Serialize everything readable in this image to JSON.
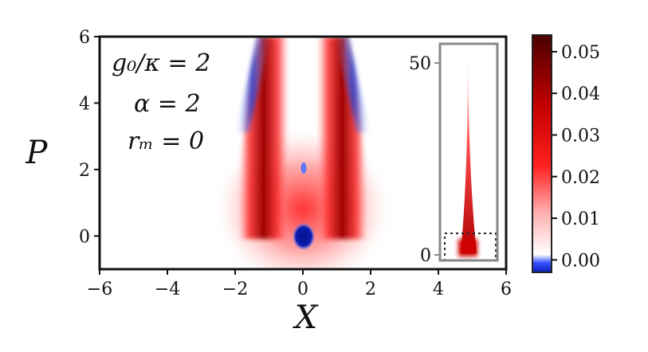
{
  "chart_data": {
    "type": "heatmap",
    "xlabel": "X",
    "ylabel": "P",
    "xlim": [
      -6,
      6
    ],
    "ylim": [
      -1,
      6
    ],
    "xticks": [
      "−6",
      "−4",
      "−2",
      "0",
      "2",
      "4",
      "6"
    ],
    "xtick_values": [
      -6,
      -4,
      -2,
      0,
      2,
      4,
      6
    ],
    "yticks": [
      "0",
      "2",
      "4",
      "6"
    ],
    "ytick_values": [
      0,
      2,
      4,
      6
    ],
    "annotations": [
      "g₀/κ = 2",
      "α = 2",
      "rₘ = 0"
    ],
    "colorbar": {
      "range": [
        -0.003,
        0.054
      ],
      "ticks": [
        "0.00",
        "0.01",
        "0.02",
        "0.03",
        "0.04",
        "0.05"
      ],
      "tick_values": [
        0.0,
        0.01,
        0.02,
        0.03,
        0.04,
        0.05
      ],
      "colors": [
        "#0b1fb8",
        "#ffffff",
        "#ff1a1a",
        "#c40000",
        "#5a0000"
      ]
    },
    "features": [
      {
        "name": "left-red-lobe",
        "x": -0.8,
        "y_range": [
          0,
          6
        ],
        "value": 0.05
      },
      {
        "name": "right-red-lobe",
        "x": 0.8,
        "y_range": [
          0,
          6
        ],
        "value": 0.05
      },
      {
        "name": "blue-spot",
        "x": 0,
        "y": 0,
        "value": -0.003
      },
      {
        "name": "small-blue-spot",
        "x": 0,
        "y": 2.05,
        "value": -0.002
      },
      {
        "name": "left-blue-fringe",
        "x": -1.2,
        "y_range": [
          3.4,
          6
        ],
        "value": -0.002
      },
      {
        "name": "right-blue-fringe",
        "x": 1.2,
        "y_range": [
          3.4,
          6
        ],
        "value": -0.002
      }
    ],
    "inset": {
      "yticks": [
        "0",
        "50"
      ],
      "ytick_values": [
        0,
        50
      ],
      "xticks": [],
      "highlight_box": "main plot region (dotted)"
    }
  }
}
